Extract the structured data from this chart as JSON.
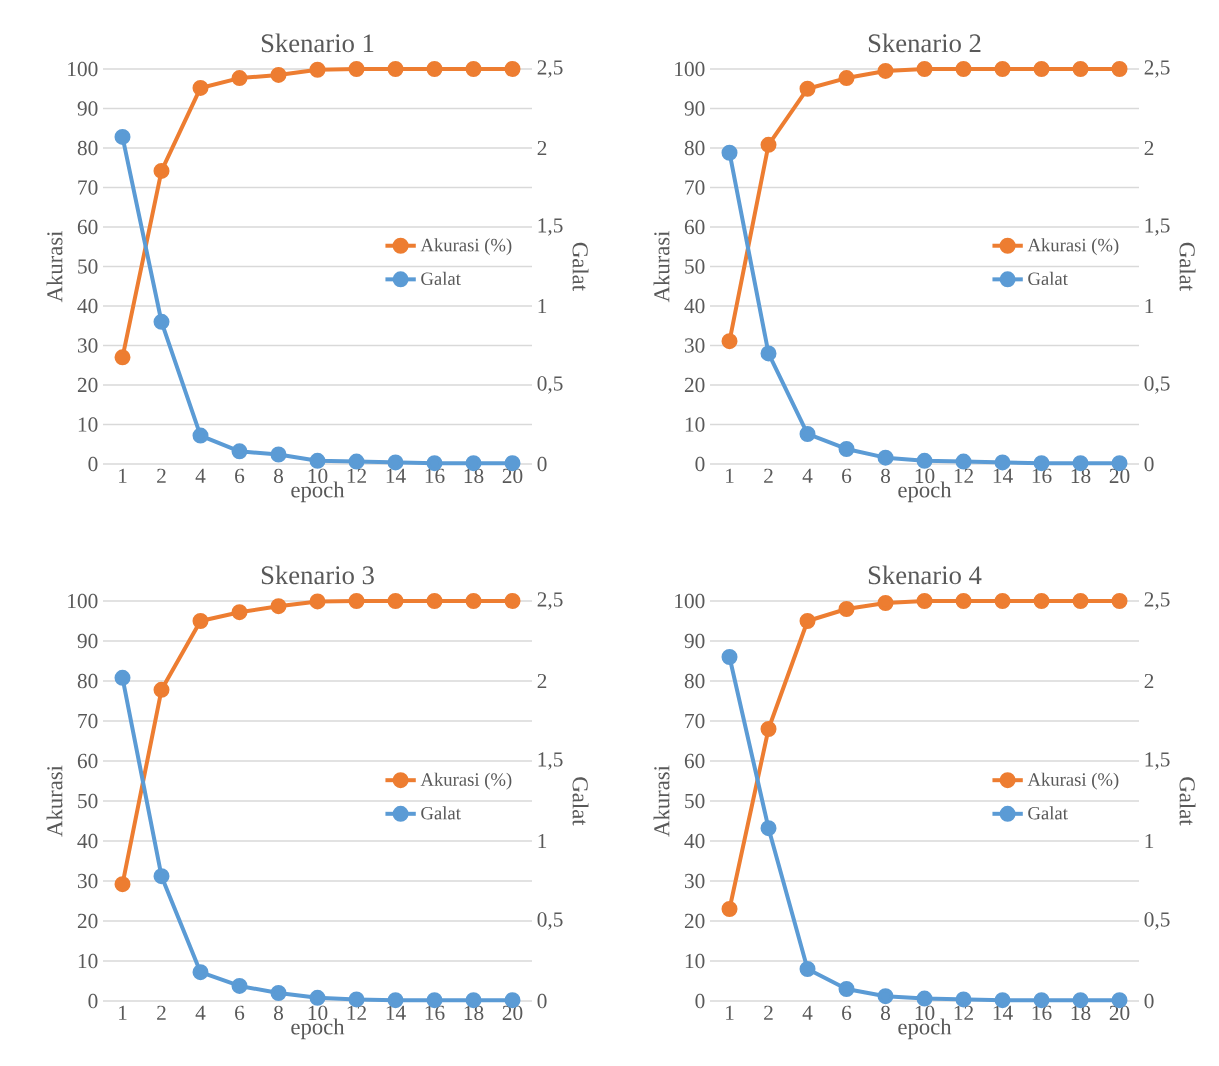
{
  "chart_data": [
    {
      "type": "line",
      "title": "Skenario 1",
      "xlabel": "epoch",
      "ylabel": "Akurasi",
      "y2label": "Galat",
      "categories": [
        "1",
        "2",
        "4",
        "6",
        "8",
        "10",
        "12",
        "14",
        "16",
        "18",
        "20"
      ],
      "series": [
        {
          "name": "Akurasi (%)",
          "color": "#ed7d31",
          "values": [
            27,
            74.2,
            95.2,
            97.7,
            98.5,
            99.8,
            100,
            100,
            100,
            100,
            100
          ]
        },
        {
          "name": "Galat",
          "color": "#5b9bd5",
          "axis": "y2",
          "values": [
            2.07,
            0.9,
            0.18,
            0.08,
            0.06,
            0.02,
            0.015,
            0.01,
            0.005,
            0.005,
            0.005
          ]
        }
      ],
      "ylim": [
        0,
        100
      ],
      "yticks": [
        0,
        10,
        20,
        30,
        40,
        50,
        60,
        70,
        80,
        90,
        100
      ],
      "y2lim": [
        0,
        2.5
      ],
      "y2ticks": [
        0,
        {
          "value": 0.5,
          "label": "0,5"
        },
        1,
        {
          "value": 1.5,
          "label": "1,5"
        },
        2,
        {
          "value": 2.5,
          "label": "2,5"
        }
      ],
      "grid": "y",
      "legend": "right",
      "marker": "circle",
      "line_style": "solid"
    },
    {
      "type": "line",
      "title": "Skenario 2",
      "xlabel": "epoch",
      "ylabel": "Akurasi",
      "y2label": "Galat",
      "categories": [
        "1",
        "2",
        "4",
        "6",
        "8",
        "10",
        "12",
        "14",
        "16",
        "18",
        "20"
      ],
      "series": [
        {
          "name": "Akurasi (%)",
          "color": "#ed7d31",
          "values": [
            31.1,
            80.8,
            95,
            97.7,
            99.5,
            100,
            100,
            100,
            100,
            100,
            100
          ]
        },
        {
          "name": "Galat",
          "color": "#5b9bd5",
          "axis": "y2",
          "values": [
            1.97,
            0.7,
            0.19,
            0.095,
            0.04,
            0.02,
            0.015,
            0.01,
            0.005,
            0.005,
            0.005
          ]
        }
      ],
      "ylim": [
        0,
        100
      ],
      "yticks": [
        0,
        10,
        20,
        30,
        40,
        50,
        60,
        70,
        80,
        90,
        100
      ],
      "y2lim": [
        0,
        2.5
      ],
      "y2ticks": [
        0,
        {
          "value": 0.5,
          "label": "0,5"
        },
        1,
        {
          "value": 1.5,
          "label": "1,5"
        },
        2,
        {
          "value": 2.5,
          "label": "2,5"
        }
      ],
      "grid": "y",
      "legend": "right",
      "marker": "circle",
      "line_style": "solid"
    },
    {
      "type": "line",
      "title": "Skenario 3",
      "xlabel": "epoch",
      "ylabel": "Akurasi",
      "y2label": "Galat",
      "categories": [
        "1",
        "2",
        "4",
        "6",
        "8",
        "10",
        "12",
        "14",
        "16",
        "18",
        "20"
      ],
      "series": [
        {
          "name": "Akurasi (%)",
          "color": "#ed7d31",
          "values": [
            29.2,
            77.8,
            95,
            97.2,
            98.7,
            99.9,
            100,
            100,
            100,
            100,
            100
          ]
        },
        {
          "name": "Galat",
          "color": "#5b9bd5",
          "axis": "y2",
          "values": [
            2.02,
            0.78,
            0.18,
            0.094,
            0.05,
            0.02,
            0.01,
            0.005,
            0.005,
            0.005,
            0.005
          ]
        }
      ],
      "ylim": [
        0,
        100
      ],
      "yticks": [
        0,
        10,
        20,
        30,
        40,
        50,
        60,
        70,
        80,
        90,
        100
      ],
      "y2lim": [
        0,
        2.5
      ],
      "y2ticks": [
        0,
        {
          "value": 0.5,
          "label": "0,5"
        },
        1,
        {
          "value": 1.5,
          "label": "1,5"
        },
        2,
        {
          "value": 2.5,
          "label": "2,5"
        }
      ],
      "grid": "y",
      "legend": "right",
      "marker": "circle",
      "line_style": "solid"
    },
    {
      "type": "line",
      "title": "Skenario 4",
      "xlabel": "epoch",
      "ylabel": "Akurasi",
      "y2label": "Galat",
      "categories": [
        "1",
        "2",
        "4",
        "6",
        "8",
        "10",
        "12",
        "14",
        "16",
        "18",
        "20"
      ],
      "series": [
        {
          "name": "Akurasi (%)",
          "color": "#ed7d31",
          "values": [
            23,
            68,
            95,
            98,
            99.5,
            100,
            100,
            100,
            100,
            100,
            100
          ]
        },
        {
          "name": "Galat",
          "color": "#5b9bd5",
          "axis": "y2",
          "values": [
            2.15,
            1.08,
            0.2,
            0.075,
            0.03,
            0.015,
            0.01,
            0.005,
            0.005,
            0.005,
            0.005
          ]
        }
      ],
      "ylim": [
        0,
        100
      ],
      "yticks": [
        0,
        10,
        20,
        30,
        40,
        50,
        60,
        70,
        80,
        90,
        100
      ],
      "y2lim": [
        0,
        2.5
      ],
      "y2ticks": [
        0,
        {
          "value": 0.5,
          "label": "0,5"
        },
        1,
        {
          "value": 1.5,
          "label": "1,5"
        },
        2,
        {
          "value": 2.5,
          "label": "2,5"
        }
      ],
      "grid": "y",
      "legend": "right",
      "marker": "circle",
      "line_style": "solid"
    }
  ]
}
